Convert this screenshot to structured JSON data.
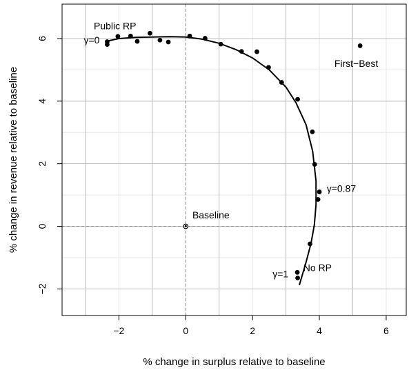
{
  "chart_data": {
    "type": "scatter",
    "xlabel": "% change in surplus relative to baseline",
    "ylabel": "% change in revenue relative to baseline",
    "xlim": [
      -3.7,
      6.6
    ],
    "ylim": [
      -2.85,
      7.1
    ],
    "x_ticks": [
      -2,
      0,
      2,
      4,
      6
    ],
    "x_tick_labels": [
      "−2",
      "0",
      "2",
      "4",
      "6"
    ],
    "y_ticks": [
      -2,
      0,
      2,
      4,
      6
    ],
    "y_tick_labels": [
      "−2",
      "0",
      "2",
      "4",
      "6"
    ],
    "grid": true,
    "grid_major_x": [
      -3,
      -1,
      1,
      3,
      5
    ],
    "grid_minor_x": [
      -2,
      0,
      2,
      4,
      6
    ],
    "grid_major_y": [
      -2,
      0,
      2,
      4,
      6
    ],
    "grid_minor_y": [
      -1,
      1,
      3,
      5
    ],
    "reference_lines": {
      "x": 0,
      "y": 0
    },
    "points": [
      {
        "x": -2.35,
        "y": 5.9
      },
      {
        "x": -2.35,
        "y": 5.81
      },
      {
        "x": -2.03,
        "y": 6.07
      },
      {
        "x": -1.65,
        "y": 6.08
      },
      {
        "x": -1.45,
        "y": 5.91
      },
      {
        "x": -1.07,
        "y": 6.17
      },
      {
        "x": -0.77,
        "y": 5.95
      },
      {
        "x": -0.52,
        "y": 5.89
      },
      {
        "x": 0.12,
        "y": 6.08
      },
      {
        "x": 0.58,
        "y": 6.01
      },
      {
        "x": 1.05,
        "y": 5.82
      },
      {
        "x": 1.67,
        "y": 5.59
      },
      {
        "x": 2.13,
        "y": 5.58
      },
      {
        "x": 2.48,
        "y": 5.08
      },
      {
        "x": 2.87,
        "y": 4.6
      },
      {
        "x": 3.35,
        "y": 4.06
      },
      {
        "x": 3.79,
        "y": 3.02
      },
      {
        "x": 3.86,
        "y": 1.98
      },
      {
        "x": 4.0,
        "y": 1.1
      },
      {
        "x": 3.96,
        "y": 0.86
      },
      {
        "x": 3.72,
        "y": -0.56
      },
      {
        "x": 3.34,
        "y": -1.47
      },
      {
        "x": 3.35,
        "y": -1.65
      },
      {
        "x": 5.22,
        "y": 5.77
      },
      {
        "x": 0.0,
        "y": 0.0,
        "hollow": true
      }
    ],
    "curve": {
      "x": [
        -2.35,
        -2.0,
        -1.5,
        -1.0,
        -0.5,
        0.0,
        0.5,
        1.0,
        1.5,
        2.0,
        2.5,
        3.0,
        3.3,
        3.6,
        3.8,
        3.9,
        3.9,
        3.85,
        3.75,
        3.6,
        3.4
      ],
      "y": [
        5.92,
        6.0,
        6.04,
        6.05,
        6.06,
        6.05,
        5.98,
        5.85,
        5.65,
        5.38,
        5.0,
        4.45,
        3.95,
        3.25,
        2.4,
        1.45,
        0.7,
        0.05,
        -0.55,
        -1.15,
        -1.88
      ]
    },
    "annotations": [
      {
        "text": "Public RP",
        "x": -2.75,
        "y": 6.3,
        "anchor": "start"
      },
      {
        "text": "γ=0",
        "x": -3.05,
        "y": 5.85,
        "anchor": "start"
      },
      {
        "text": "First−Best",
        "x": 4.45,
        "y": 5.1,
        "anchor": "start"
      },
      {
        "text": "Baseline",
        "x": 0.2,
        "y": 0.25,
        "anchor": "start"
      },
      {
        "text": "γ=0.87",
        "x": 4.22,
        "y": 1.1,
        "anchor": "start"
      },
      {
        "text": "No RP",
        "x": 3.52,
        "y": -1.43,
        "anchor": "start"
      },
      {
        "text": "γ=1",
        "x": 2.6,
        "y": -1.63,
        "anchor": "start"
      }
    ]
  }
}
